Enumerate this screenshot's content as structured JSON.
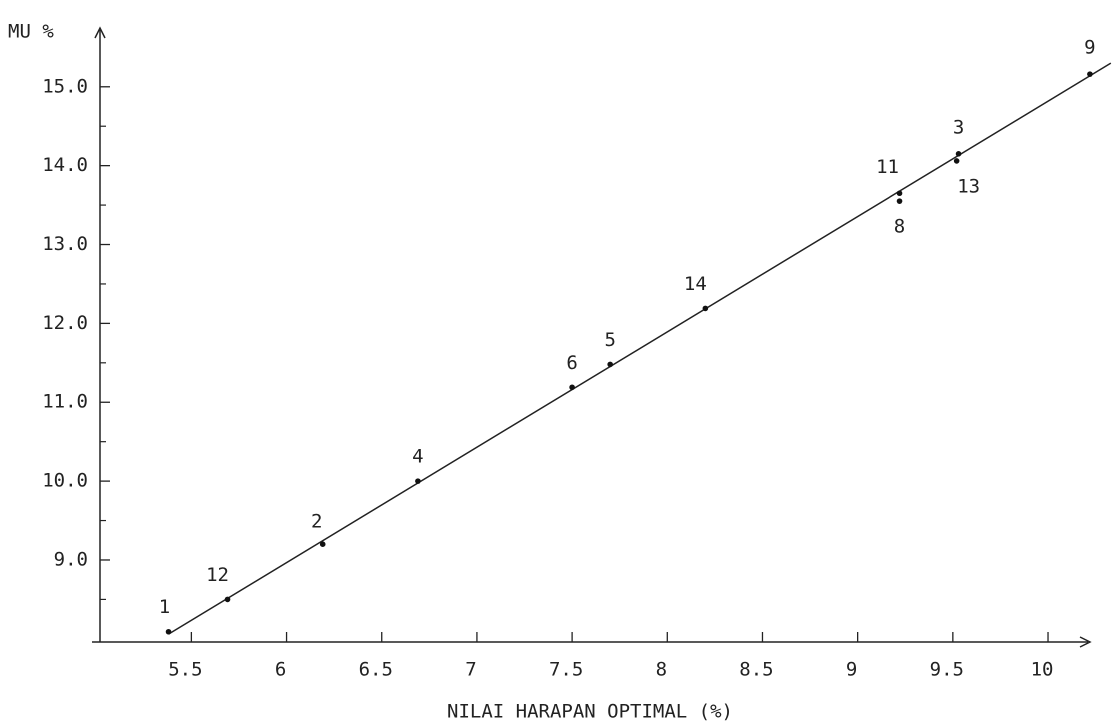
{
  "chart_data": {
    "type": "scatter",
    "y_label": "MU %",
    "x_label": "NILAI HARAPAN OPTIMAL (%)",
    "point_labels": [
      "1",
      "12",
      "2",
      "4",
      "6",
      "5",
      "14",
      "11",
      "8",
      "3",
      "13",
      "9"
    ],
    "x": [
      5.38,
      5.69,
      6.19,
      6.69,
      7.5,
      7.7,
      8.2,
      9.22,
      9.22,
      9.53,
      9.52,
      10.22
    ],
    "values": [
      8.09,
      8.5,
      9.2,
      10.0,
      11.19,
      11.48,
      12.19,
      13.65,
      13.55,
      14.15,
      14.06,
      15.16
    ],
    "color": "#111111",
    "fit_line": {
      "x": [
        5.38,
        10.33
      ],
      "values": [
        8.06,
        15.3
      ]
    },
    "xlim": [
      5.02,
      10.21
    ],
    "ylim": [
      7.96,
      15.72
    ],
    "xticks": [
      5.5,
      6,
      6.5,
      7,
      7.5,
      8,
      8.5,
      9,
      9.5,
      10
    ],
    "yticks": [
      {
        "value": 9,
        "label": "9.0"
      },
      {
        "value": 10,
        "label": "10.0"
      },
      {
        "value": 11,
        "label": "11.0"
      },
      {
        "value": 12,
        "label": "12.0"
      },
      {
        "value": 13,
        "label": "13.0"
      },
      {
        "value": 14,
        "label": "14.0"
      },
      {
        "value": 15,
        "label": "15.0"
      }
    ],
    "yminor": [
      8.5,
      9.5,
      10.5,
      11.5,
      12.5,
      13.5,
      14.5
    ],
    "grid": false
  }
}
